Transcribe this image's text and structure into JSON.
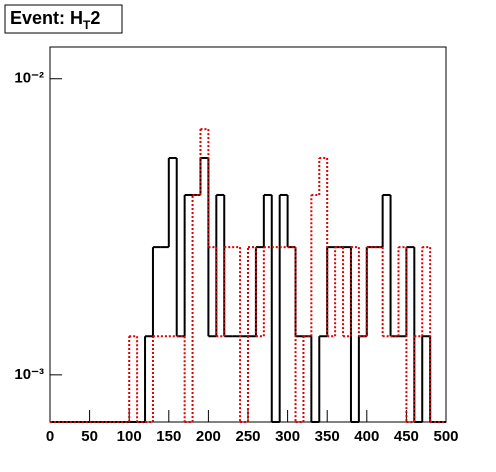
{
  "chart_data": {
    "type": "step_histogram",
    "title": "Event: H_{T}2",
    "bins": [
      0,
      10,
      20,
      30,
      40,
      50,
      60,
      70,
      80,
      90,
      100,
      110,
      120,
      130,
      140,
      150,
      160,
      170,
      180,
      190,
      200,
      210,
      220,
      230,
      240,
      250,
      260,
      270,
      280,
      290,
      300,
      310,
      320,
      330,
      340,
      350,
      360,
      370,
      380,
      390,
      400,
      410,
      420,
      430,
      440,
      450,
      460,
      470,
      480,
      490,
      500
    ],
    "series": [
      {
        "color": "#000000",
        "dashed": false,
        "values": [
          0,
          0,
          0,
          0,
          0,
          0,
          0,
          0,
          0,
          0,
          0,
          0,
          0.00135,
          0.0027,
          0.0027,
          0.0054,
          0.00135,
          0.00405,
          0.00405,
          0.0054,
          0.00135,
          0.00405,
          0.00135,
          0.00135,
          0.00135,
          0.00135,
          0.0027,
          0.00405,
          0,
          0.00405,
          0.0027,
          0.00135,
          0.00135,
          0,
          0.00135,
          0.0027,
          0.0027,
          0.0027,
          0,
          0.00135,
          0.0027,
          0.0027,
          0.00405,
          0.00135,
          0.00135,
          0.0027,
          0,
          0.00135,
          0,
          0
        ]
      },
      {
        "color": "#dd0000",
        "dashed": true,
        "values": [
          0,
          0,
          0,
          0,
          0,
          0,
          0,
          0,
          0,
          0,
          0.00135,
          0,
          0,
          0.00135,
          0.00135,
          0.00135,
          0.00135,
          0,
          0.00405,
          0.00676,
          0.0027,
          0.00135,
          0.0027,
          0.0027,
          0,
          0.0027,
          0.00135,
          0.0027,
          0.0027,
          0.0027,
          0.0027,
          0,
          0.00135,
          0.00405,
          0.0054,
          0.00135,
          0.0027,
          0.00135,
          0.0027,
          0.00135,
          0.0027,
          0.0027,
          0.00135,
          0.00135,
          0.0027,
          0,
          0.00135,
          0.0027,
          0,
          0
        ]
      }
    ],
    "xlim": [
      0,
      500
    ],
    "xticks": [
      0,
      50,
      100,
      150,
      200,
      250,
      300,
      350,
      400,
      450,
      500
    ],
    "ylim": [
      0.000693,
      0.0128
    ],
    "log_y": true,
    "yticks": [
      {
        "value": 0.001,
        "label": "10⁻³"
      },
      {
        "value": 0.01,
        "label": "10⁻²"
      }
    ]
  }
}
